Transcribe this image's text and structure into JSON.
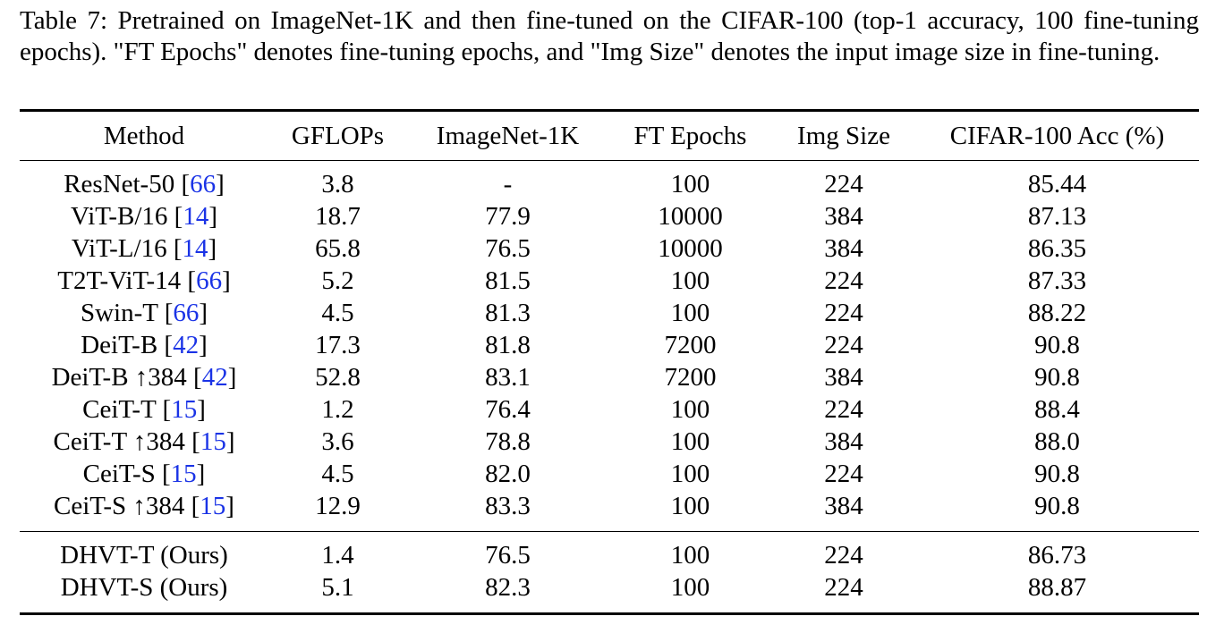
{
  "caption": "Table 7: Pretrained on ImageNet-1K and then fine-tuned on the CIFAR-100 (top-1 accuracy, 100 fine-tuning epochs). \"FT Epochs\" denotes fine-tuning epochs, and \"Img Size\" denotes the input image size in fine-tuning.",
  "columns": [
    "Method",
    "GFLOPs",
    "ImageNet-1K",
    "FT Epochs",
    "Img Size",
    "CIFAR-100 Acc (%)"
  ],
  "rows_baselines": [
    {
      "method": "ResNet-50",
      "ref": "66",
      "gflops": "3.8",
      "imagenet": "-",
      "ft_epochs": "100",
      "img_size": "224",
      "acc": "85.44"
    },
    {
      "method": "ViT-B/16",
      "ref": "14",
      "gflops": "18.7",
      "imagenet": "77.9",
      "ft_epochs": "10000",
      "img_size": "384",
      "acc": "87.13"
    },
    {
      "method": "ViT-L/16",
      "ref": "14",
      "gflops": "65.8",
      "imagenet": "76.5",
      "ft_epochs": "10000",
      "img_size": "384",
      "acc": "86.35"
    },
    {
      "method": "T2T-ViT-14",
      "ref": "66",
      "gflops": "5.2",
      "imagenet": "81.5",
      "ft_epochs": "100",
      "img_size": "224",
      "acc": "87.33"
    },
    {
      "method": "Swin-T",
      "ref": "66",
      "gflops": "4.5",
      "imagenet": "81.3",
      "ft_epochs": "100",
      "img_size": "224",
      "acc": "88.22"
    },
    {
      "method": "DeiT-B",
      "ref": "42",
      "gflops": "17.3",
      "imagenet": "81.8",
      "ft_epochs": "7200",
      "img_size": "224",
      "acc": "90.8"
    },
    {
      "method": "DeiT-B ↑384",
      "ref": "42",
      "gflops": "52.8",
      "imagenet": "83.1",
      "ft_epochs": "7200",
      "img_size": "384",
      "acc": "90.8"
    },
    {
      "method": "CeiT-T",
      "ref": "15",
      "gflops": "1.2",
      "imagenet": "76.4",
      "ft_epochs": "100",
      "img_size": "224",
      "acc": "88.4"
    },
    {
      "method": "CeiT-T ↑384",
      "ref": "15",
      "gflops": "3.6",
      "imagenet": "78.8",
      "ft_epochs": "100",
      "img_size": "384",
      "acc": "88.0"
    },
    {
      "method": "CeiT-S",
      "ref": "15",
      "gflops": "4.5",
      "imagenet": "82.0",
      "ft_epochs": "100",
      "img_size": "224",
      "acc": "90.8"
    },
    {
      "method": "CeiT-S ↑384",
      "ref": "15",
      "gflops": "12.9",
      "imagenet": "83.3",
      "ft_epochs": "100",
      "img_size": "384",
      "acc": "90.8"
    }
  ],
  "rows_ours": [
    {
      "method": "DHVT-T (Ours)",
      "gflops": "1.4",
      "imagenet": "76.5",
      "ft_epochs": "100",
      "img_size": "224",
      "acc": "86.73"
    },
    {
      "method": "DHVT-S (Ours)",
      "gflops": "5.1",
      "imagenet": "82.3",
      "ft_epochs": "100",
      "img_size": "224",
      "acc": "88.87"
    }
  ],
  "colors": {
    "citation": "#1a33e6",
    "text": "#000000"
  }
}
